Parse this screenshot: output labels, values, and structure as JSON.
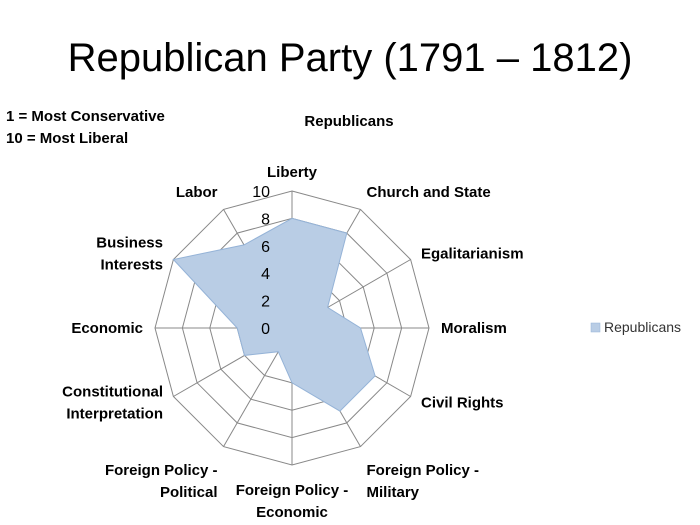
{
  "slide_title": "Republican Party (1791 – 1812)",
  "scale_note": {
    "line1": "1 = Most Conservative",
    "line2": "10 = Most Liberal"
  },
  "chart_data": {
    "type": "radar",
    "title": "Republicans",
    "categories": [
      [
        "Liberty"
      ],
      [
        "Church and State"
      ],
      [
        "Egalitarianism"
      ],
      [
        "Moralism"
      ],
      [
        "Civil Rights"
      ],
      [
        "Foreign Policy -",
        "Military"
      ],
      [
        "Foreign Policy -",
        "Economic"
      ],
      [
        "Foreign Policy -",
        "Political"
      ],
      [
        "Constitutional",
        "Interpretation"
      ],
      [
        "Economic"
      ],
      [
        "Business",
        "Interests"
      ],
      [
        "Labor"
      ]
    ],
    "series": [
      {
        "name": "Republicans",
        "values": [
          8,
          8,
          3,
          5,
          7,
          7,
          4,
          2,
          4,
          4,
          10,
          7
        ]
      }
    ],
    "rlim": [
      0,
      10
    ],
    "ticks": [
      0,
      2,
      4,
      6,
      8,
      10
    ],
    "grid": true,
    "legend_position": "right",
    "colors": {
      "series_fill": "#b9cde5",
      "series_stroke": "#95b3d7",
      "grid": "#888888"
    }
  }
}
